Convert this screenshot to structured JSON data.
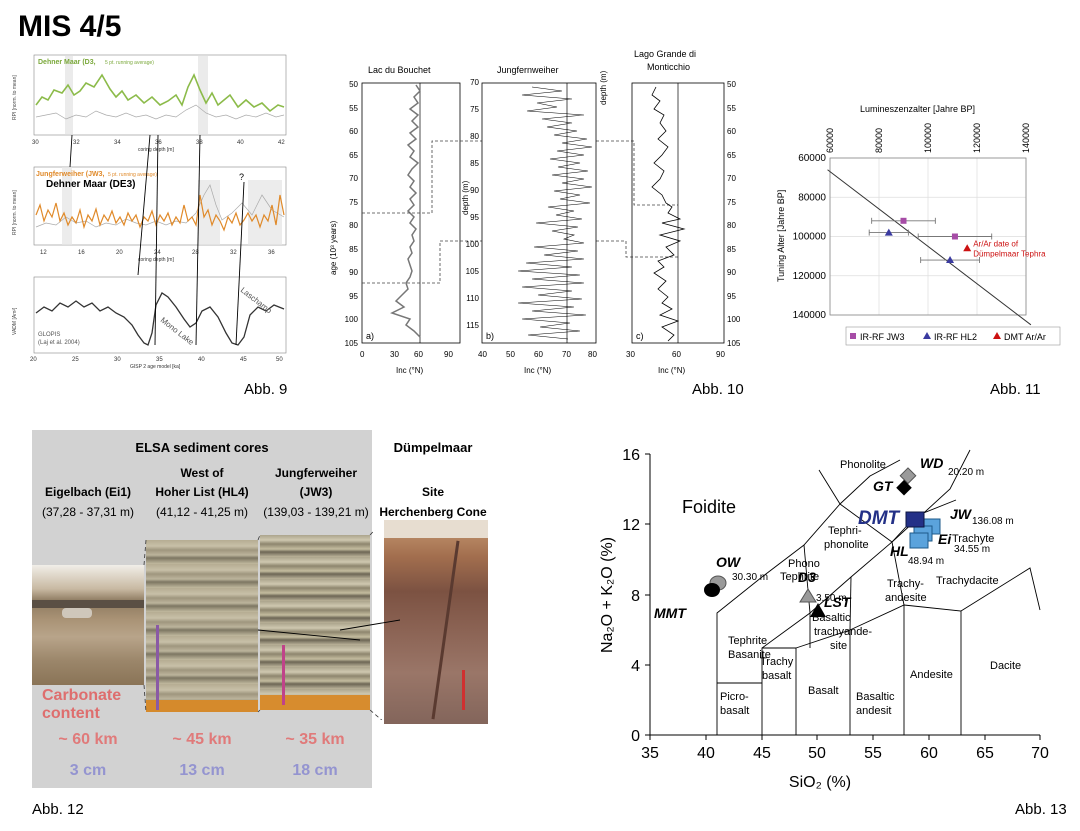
{
  "page": {
    "title": "MIS 4/5"
  },
  "captions": {
    "fig9": "Abb. 9",
    "fig10": "Abb. 10",
    "fig11": "Abb. 11",
    "fig12": "Abb. 12",
    "fig13": "Abb. 13"
  },
  "fig9": {
    "p1_title": "Dehner Maar (D3,",
    "p1_note": "5 pt. running average)",
    "p1_ylabel": "RPI [norm. to mean]",
    "p1_xlabel": "coring depth [m]",
    "p1_xticks": [
      "30",
      "32",
      "34",
      "36",
      "38",
      "40",
      "42"
    ],
    "p2_title": "Jungferweiher (JW3,",
    "p2_note": "5 pt. running average)",
    "p2_title2": "Dehner Maar (DE3)",
    "p2_ylabel": "RPI [norm. to mean]",
    "p2_xlabel": "coring depth [m]",
    "p2_xticks": [
      "12",
      "16",
      "20",
      "24",
      "28",
      "32",
      "36"
    ],
    "p2_question": "?",
    "p3_ylabel": "VADM [Am²]",
    "p3_xlabel": "GISP 2 age model [ka]",
    "p3_xticks": [
      "20",
      "25",
      "30",
      "35",
      "40",
      "45",
      "50"
    ],
    "p3_source1": "GLOPIS",
    "p3_source2": "(Laj et al. 2004)",
    "p3_label_mono": "Mono Lake",
    "p3_label_lasch": "Laschamp"
  },
  "fig10": {
    "panels": [
      {
        "title": "Lac du Bouchet",
        "letter": "a)",
        "xlabel": "Inc (°N)",
        "xticks": [
          "0",
          "30",
          "60",
          "90"
        ]
      },
      {
        "title": "Jungfernweiher",
        "letter": "b)",
        "xlabel": "Inc (°N)",
        "xticks": [
          "40",
          "50",
          "60",
          "70",
          "80"
        ]
      },
      {
        "title": "Lago Grande di",
        "title2": "Monticchio",
        "letter": "c)",
        "xlabel": "Inc (°N)",
        "xticks": [
          "30",
          "60",
          "90"
        ]
      }
    ],
    "left_axis_label": "age (10³ years)",
    "left_axis_ticks": [
      "50",
      "55",
      "60",
      "65",
      "70",
      "75",
      "80",
      "85",
      "90",
      "95",
      "100",
      "105"
    ],
    "depth_label": "depth (m)",
    "depth_ticks_b": [
      "70",
      "75",
      "80",
      "85",
      "90",
      "95",
      "100",
      "105",
      "110",
      "115"
    ],
    "right_ticks_c": [
      "50",
      "55",
      "60",
      "65",
      "70",
      "75",
      "80",
      "85",
      "90",
      "95",
      "100",
      "105"
    ]
  },
  "chart_data": {
    "type": "scatter",
    "title": "Lumineszenzalter [Jahre BP]",
    "xlabel": "Lumineszenzalter [Jahre BP]",
    "ylabel": "Tuning Alter [Jahre BP]",
    "xticks": [
      "60000",
      "80000",
      "100000",
      "120000",
      "140000"
    ],
    "yticks": [
      "60000",
      "80000",
      "100000",
      "120000",
      "140000"
    ],
    "xlim": [
      60000,
      140000
    ],
    "ylim": [
      60000,
      140000
    ],
    "x_axis_position": "top",
    "y_axis_inverted": true,
    "grid": true,
    "legend_position": "bottom",
    "annotation": "Ar/Ar date of Dümpelmaar Tephra",
    "series": [
      {
        "name": "IR-RF JW3",
        "color": "#a64ca6",
        "marker": "square",
        "points": [
          {
            "x": 90000,
            "y": 92000,
            "xerr": 13000
          },
          {
            "x": 111000,
            "y": 100000,
            "xerr": 15000
          }
        ]
      },
      {
        "name": "IR-RF HL2",
        "color": "#3a3aa0",
        "marker": "triangle",
        "points": [
          {
            "x": 84000,
            "y": 98000,
            "xerr": 8000
          },
          {
            "x": 109000,
            "y": 112000,
            "xerr": 12000
          }
        ]
      },
      {
        "name": "DMT Ar/Ar",
        "color": "#cc1111",
        "marker": "triangle",
        "points": [
          {
            "x": 116000,
            "y": 106000,
            "xerr": 0
          }
        ]
      }
    ],
    "reference_line": [
      [
        59000,
        66000
      ],
      [
        142000,
        145000
      ]
    ]
  },
  "fig12": {
    "header": "ELSA sediment cores",
    "right_header": "Dümpelmaar",
    "columns": [
      {
        "line1": "Eigelbach (Ei1)",
        "line2": "",
        "range": "(37,28 - 37,31 m)",
        "km": "~ 60 km",
        "cm": "3 cm"
      },
      {
        "line1": "West of",
        "line2": "Hoher List (HL4)",
        "range": "(41,12 - 41,25 m)",
        "km": "~ 45 km",
        "cm": "13 cm"
      },
      {
        "line1": "Jungferweiher",
        "line2": "(JW3)",
        "range": "(139,03 - 139,21 m)",
        "km": "~ 35 km",
        "cm": "18 cm"
      },
      {
        "line1": "Site",
        "line2": "Herchenberg Cone",
        "range": "",
        "km": "",
        "cm": ""
      }
    ],
    "carbonate1": "Carbonate",
    "carbonate2": "content"
  },
  "fig13": {
    "ylabel": "Na₂O + K₂O (%)",
    "xlabel": "SiO₂ (%)",
    "xticks": [
      "35",
      "40",
      "45",
      "50",
      "55",
      "60",
      "65",
      "70"
    ],
    "yticks": [
      "0",
      "4",
      "8",
      "12",
      "16"
    ],
    "fields": {
      "foidite": "Foidite",
      "phonolite": "Phonolite",
      "tephri1": "Tephri-",
      "tephri2": "phonolite",
      "phono1": "Phono",
      "phono2": "Tephrite",
      "teph_bas1": "Tephrite",
      "teph_bas2": "Basanite",
      "trachybas1": "Trachy",
      "trachybas2": "basalt",
      "btrach1": "Basaltic",
      "btrach2": "trachyande-",
      "btrach3": "site",
      "trachyand1": "Trachy-",
      "trachyand2": "andesite",
      "trachyte": "Trachyte",
      "trachydacite": "Trachydacite",
      "picro1": "Picro-",
      "picro2": "basalt",
      "basalt": "Basalt",
      "bas_and1": "Basaltic",
      "bas_and2": "andesit",
      "andesite": "Andesite",
      "dacite": "Dacite"
    },
    "samples": {
      "wd": "WD",
      "wd_depth": "20.20 m",
      "gt": "GT",
      "dmt": "DMT",
      "jw": "JW",
      "jw_depth": "136.08 m",
      "ei": "Ei",
      "ei_depth": "34.55 m",
      "hl": "HL",
      "hl_depth": "48.94 m",
      "ow": "OW",
      "ow_depth": "30.30 m",
      "mmt": "MMT",
      "d3": "D3",
      "d3_depth": "3.50 m",
      "lst": "LST"
    },
    "colors": {
      "dmt": "#233087",
      "light_blue": "#5ba3dc",
      "gray": "#9a9a9a"
    }
  }
}
